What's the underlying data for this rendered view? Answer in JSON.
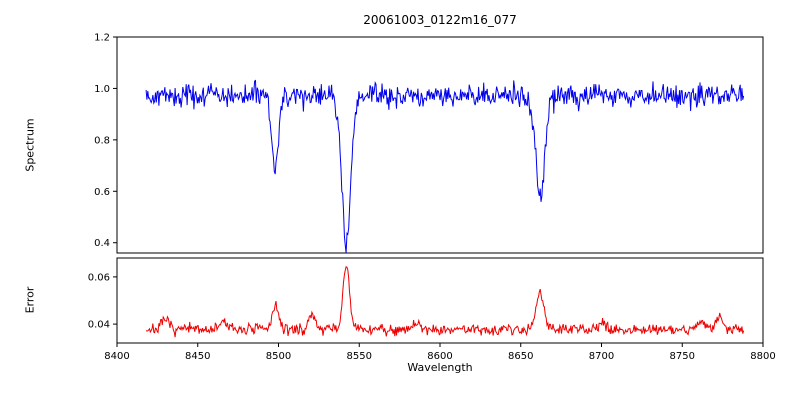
{
  "chart_data": [
    {
      "type": "line",
      "series_name": "spectrum",
      "title": "20061003_0122m16_077",
      "ylabel": "Spectrum",
      "color": "#0000ee",
      "xlim": [
        8400,
        8800
      ],
      "ylim": [
        0.36,
        1.2
      ],
      "ytick_values": [
        0.4,
        0.6,
        0.8,
        1.0,
        1.2
      ],
      "ytick_labels": [
        "0.4",
        "0.6",
        "0.8",
        "1.0",
        "1.2"
      ],
      "x_start": 8418,
      "x_end": 8788,
      "n_points": 700,
      "baseline": 0.972,
      "noise_sigma": 0.022,
      "seed": 42,
      "absorption_lines": [
        {
          "center": 8498,
          "depth": 0.3,
          "width": 2.0
        },
        {
          "center": 8542,
          "depth": 0.58,
          "width": 2.8
        },
        {
          "center": 8662,
          "depth": 0.39,
          "width": 2.8
        }
      ]
    },
    {
      "type": "line",
      "series_name": "error",
      "ylabel": "Error",
      "xlabel": "Wavelength",
      "color": "#ee0000",
      "xlim": [
        8400,
        8800
      ],
      "ylim": [
        0.032,
        0.068
      ],
      "xticks": [
        8400,
        8450,
        8500,
        8550,
        8600,
        8650,
        8700,
        8750,
        8800
      ],
      "xtick_labels": [
        "8400",
        "8450",
        "8500",
        "8550",
        "8600",
        "8650",
        "8700",
        "8750",
        "8800"
      ],
      "ytick_values": [
        0.04,
        0.06
      ],
      "ytick_labels": [
        "0.04",
        "0.06"
      ],
      "x_start": 8418,
      "x_end": 8788,
      "n_points": 700,
      "baseline": 0.0378,
      "noise_sigma": 0.0012,
      "seed": 7,
      "spikes": [
        {
          "center": 8430,
          "height": 0.004,
          "width": 2.0
        },
        {
          "center": 8466,
          "height": 0.0035,
          "width": 2.0
        },
        {
          "center": 8498,
          "height": 0.01,
          "width": 2.0
        },
        {
          "center": 8521,
          "height": 0.006,
          "width": 2.0
        },
        {
          "center": 8542,
          "height": 0.027,
          "width": 2.0
        },
        {
          "center": 8585,
          "height": 0.002,
          "width": 3.0
        },
        {
          "center": 8662,
          "height": 0.016,
          "width": 2.5
        },
        {
          "center": 8700,
          "height": 0.002,
          "width": 2.0
        },
        {
          "center": 8762,
          "height": 0.004,
          "width": 2.0
        },
        {
          "center": 8773,
          "height": 0.005,
          "width": 2.0
        }
      ]
    }
  ]
}
